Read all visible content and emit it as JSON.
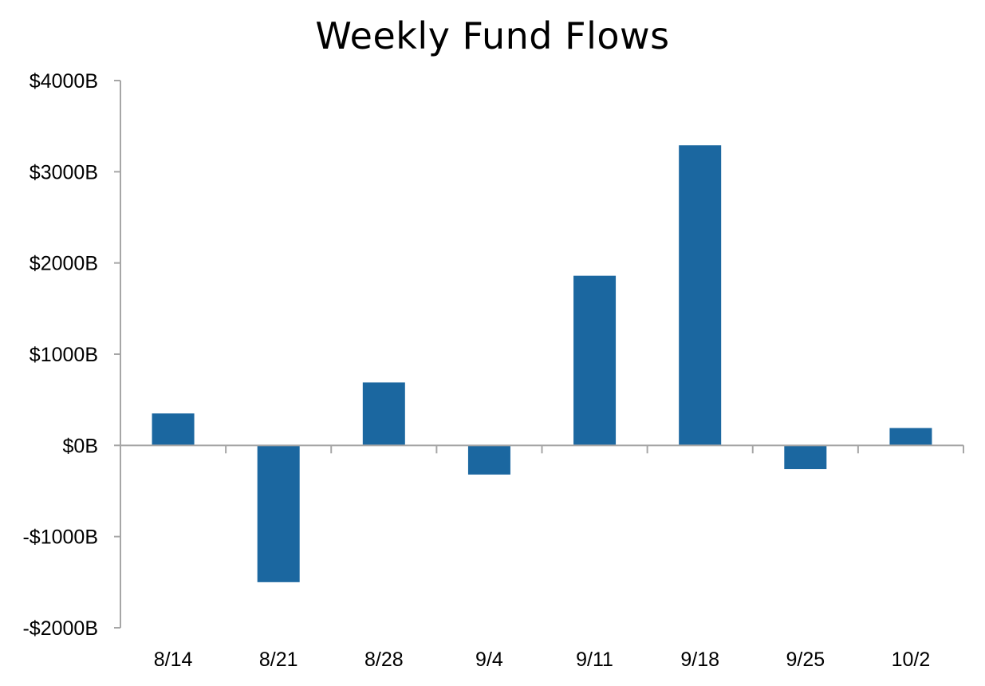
{
  "chart_data": {
    "type": "bar",
    "title": "Weekly Fund Flows",
    "xlabel": "",
    "ylabel": "",
    "categories": [
      "8/14",
      "8/21",
      "8/28",
      "9/4",
      "9/11",
      "9/18",
      "9/25",
      "10/2"
    ],
    "values": [
      350,
      -1500,
      690,
      -320,
      1860,
      3290,
      -260,
      190
    ],
    "ylim": [
      -2000,
      4000
    ],
    "yticks": [
      4000,
      3000,
      2000,
      1000,
      0,
      -1000,
      -2000
    ],
    "ytick_labels": [
      "$4000B",
      "$3000B",
      "$2000B",
      "$1000B",
      "$0B",
      "-$1000B",
      "-$2000B"
    ],
    "grid": false,
    "legend": "none",
    "bar_color": "#1b67a0",
    "axis_color": "#a6a6a6"
  }
}
